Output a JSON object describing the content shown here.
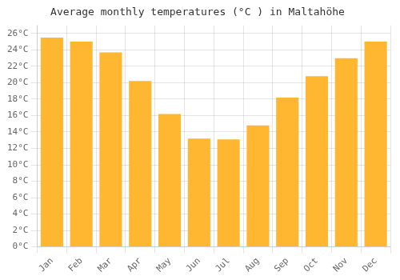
{
  "chart_data": {
    "type": "bar",
    "title": "Average monthly temperatures (°C ) in Maltahöhe",
    "categories": [
      "Jan",
      "Feb",
      "Mar",
      "Apr",
      "May",
      "Jun",
      "Jul",
      "Aug",
      "Sep",
      "Oct",
      "Nov",
      "Dec"
    ],
    "values": [
      25.5,
      25.0,
      23.7,
      20.2,
      16.2,
      13.2,
      13.1,
      14.8,
      18.2,
      20.8,
      23.0,
      25.0
    ],
    "color": "#FFB732",
    "ylim": [
      0,
      27
    ],
    "yticks": [
      {
        "value": 0,
        "label": "0°C"
      },
      {
        "value": 2,
        "label": "2°C"
      },
      {
        "value": 4,
        "label": "4°C"
      },
      {
        "value": 6,
        "label": "6°C"
      },
      {
        "value": 8,
        "label": "8°C"
      },
      {
        "value": 10,
        "label": "10°C"
      },
      {
        "value": 12,
        "label": "12°C"
      },
      {
        "value": 14,
        "label": "14°C"
      },
      {
        "value": 16,
        "label": "16°C"
      },
      {
        "value": 18,
        "label": "18°C"
      },
      {
        "value": 20,
        "label": "20°C"
      },
      {
        "value": 22,
        "label": "22°C"
      },
      {
        "value": 24,
        "label": "24°C"
      },
      {
        "value": 26,
        "label": "26°C"
      }
    ],
    "grid": true
  }
}
